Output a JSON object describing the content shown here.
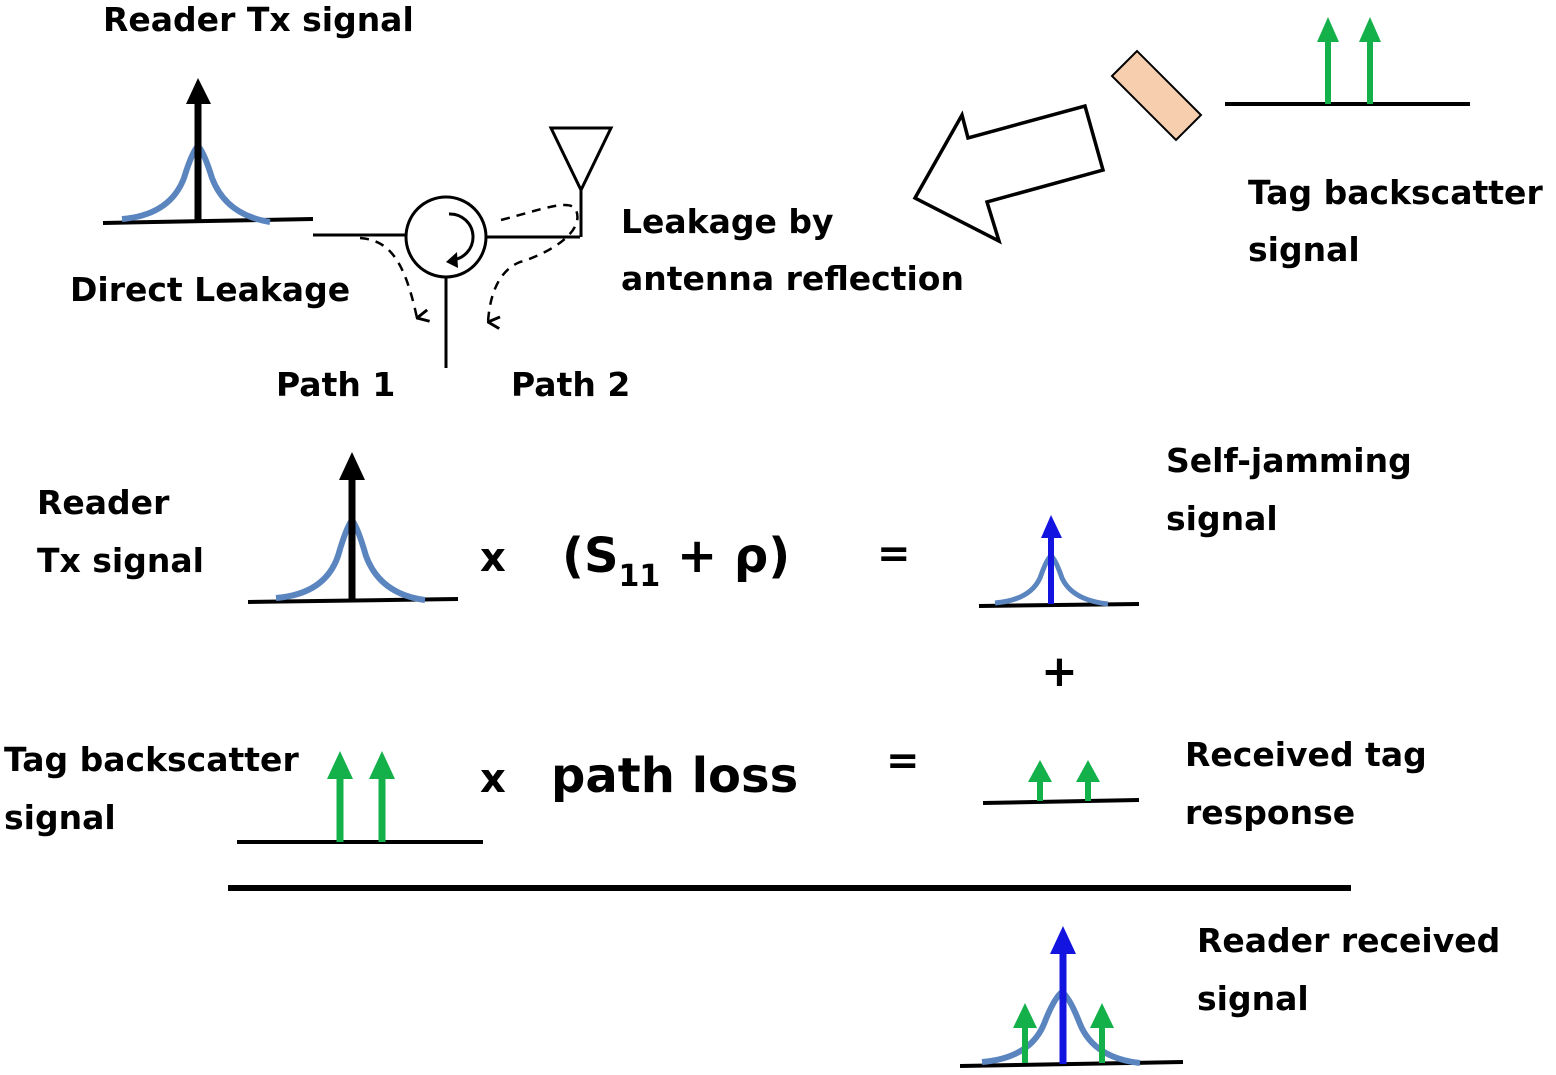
{
  "top": {
    "reader_tx_title": "Reader Tx  signal",
    "direct_leakage": "Direct Leakage",
    "path1": "Path 1",
    "path2": "Path 2",
    "antenna_leakage_line1": "Leakage by",
    "antenna_leakage_line2": "antenna reflection",
    "tag_backscatter_line1": "Tag backscatter",
    "tag_backscatter_line2": "signal"
  },
  "eq1": {
    "label_line1": "Reader",
    "label_line2": "Tx  signal",
    "times": "x",
    "open_paren": "(S",
    "subscript": "11",
    "rest": " + ρ)",
    "equals": "=",
    "result_line1": "Self-jamming",
    "result_line2": "signal"
  },
  "plus": "+",
  "eq2": {
    "label_line1": "Tag backscatter",
    "label_line2": "signal",
    "times": "x",
    "factor": "path loss",
    "equals": "=",
    "result_line1": "Received tag",
    "result_line2": "response"
  },
  "sum": {
    "label_line1": "Reader received",
    "label_line2": "signal"
  },
  "colors": {
    "carrier_curve": "#5B85BF",
    "carrier_arrow": "#000000",
    "jamming_arrow": "#1414E0",
    "tag_arrow": "#14B14B",
    "tag_fill": "#F8CFAE",
    "line": "#000000"
  }
}
